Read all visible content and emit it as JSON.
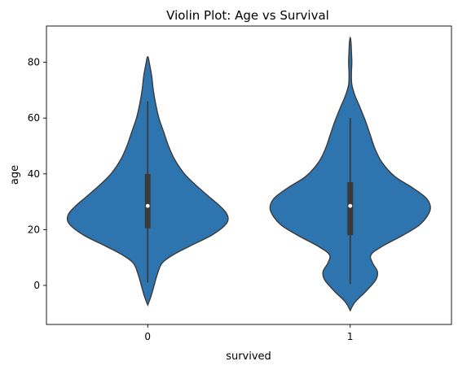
{
  "chart_data": {
    "type": "violin",
    "title": "Violin Plot: Age vs Survival",
    "xlabel": "survived",
    "ylabel": "age",
    "categories": [
      "0",
      "1"
    ],
    "ylim": [
      -14,
      93
    ],
    "yticks": [
      0,
      20,
      40,
      60,
      80
    ],
    "grid": false,
    "violin_color": "#2e75b0",
    "outline_color": "#3a3a3a",
    "violins": [
      {
        "category": "0",
        "min": -7,
        "max": 82,
        "whisker": [
          1,
          66
        ],
        "q1": 20.5,
        "median": 28.5,
        "q3": 40,
        "density": [
          [
            -7,
            0.0
          ],
          [
            -4,
            0.04
          ],
          [
            0,
            0.08
          ],
          [
            4,
            0.12
          ],
          [
            8,
            0.18
          ],
          [
            11,
            0.32
          ],
          [
            14,
            0.52
          ],
          [
            18,
            0.8
          ],
          [
            22,
            0.98
          ],
          [
            25,
            1.0
          ],
          [
            28,
            0.92
          ],
          [
            32,
            0.76
          ],
          [
            36,
            0.6
          ],
          [
            40,
            0.46
          ],
          [
            45,
            0.34
          ],
          [
            50,
            0.26
          ],
          [
            55,
            0.2
          ],
          [
            60,
            0.14
          ],
          [
            65,
            0.1
          ],
          [
            70,
            0.07
          ],
          [
            75,
            0.05
          ],
          [
            79,
            0.025
          ],
          [
            82,
            0.0
          ]
        ]
      },
      {
        "category": "1",
        "min": -9,
        "max": 89,
        "whisker": [
          0.5,
          60
        ],
        "q1": 18,
        "median": 28.5,
        "q3": 37,
        "density": [
          [
            -9,
            0.0
          ],
          [
            -6,
            0.06
          ],
          [
            -2,
            0.2
          ],
          [
            2,
            0.32
          ],
          [
            5,
            0.34
          ],
          [
            8,
            0.28
          ],
          [
            11,
            0.26
          ],
          [
            14,
            0.4
          ],
          [
            18,
            0.66
          ],
          [
            22,
            0.88
          ],
          [
            27,
            1.0
          ],
          [
            31,
            0.96
          ],
          [
            35,
            0.78
          ],
          [
            39,
            0.56
          ],
          [
            44,
            0.4
          ],
          [
            49,
            0.31
          ],
          [
            54,
            0.25
          ],
          [
            59,
            0.19
          ],
          [
            64,
            0.12
          ],
          [
            68,
            0.06
          ],
          [
            72,
            0.02
          ],
          [
            76,
            0.015
          ],
          [
            80,
            0.02
          ],
          [
            84,
            0.015
          ],
          [
            87,
            0.01
          ],
          [
            89,
            0.0
          ]
        ]
      }
    ]
  }
}
